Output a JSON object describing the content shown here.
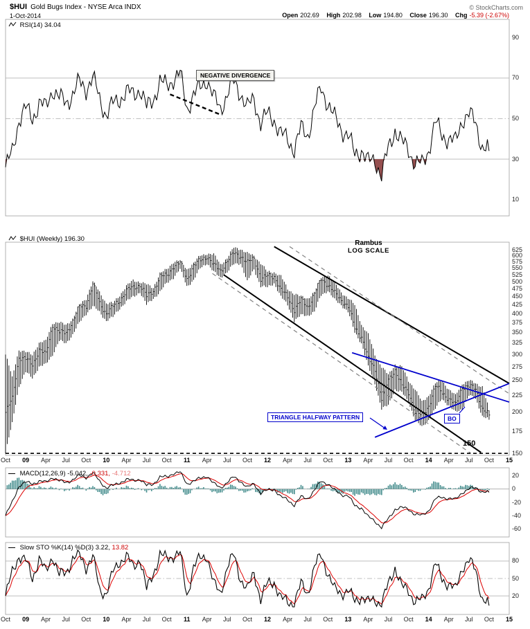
{
  "header": {
    "symbol": "$HUI",
    "name": "Gold Bugs Index - NYSE Arca INDX",
    "copyright": "© StockCharts.com",
    "date": "1-Oct-2014",
    "quote": [
      {
        "label": "Open",
        "value": "202.69"
      },
      {
        "label": "High",
        "value": "202.98"
      },
      {
        "label": "Low",
        "value": "194.80"
      },
      {
        "label": "Close",
        "value": "196.30"
      },
      {
        "label": "Chg",
        "value": "-5.39 (-2.67%)"
      }
    ]
  },
  "labels": {
    "rsi": {
      "text": "RSI(14)",
      "value": "34.04"
    },
    "price": {
      "text": "$HUI (Weekly)",
      "value": "196.30"
    },
    "macd": {
      "text": "MACD(12,26,9)",
      "v1": "-5.042,",
      "v2": "-0.331,",
      "v3": "-4.712"
    },
    "sto": {
      "text": "Slow STO %K(14) %D(3)",
      "v1": "3.22,",
      "v2": "13.82"
    }
  },
  "annotations": {
    "negative_divergence": "NEGATIVE DIVERGENCE",
    "rambus_line1": "Rambus",
    "rambus_line2": "LOG SCALE",
    "triangle": "TRIANGLE HALFWAY PATTERN",
    "bo": "BO",
    "level": "150"
  },
  "colors": {
    "negative": "#cc0000",
    "line": "#000000",
    "signal_red": "#dd0000",
    "macd_hist": "#2f7f7f",
    "oversold_fill": "#8b3d3d",
    "overbought_fill": "#999999",
    "blue": "#0000cc",
    "channel_dashed": "#808080",
    "grid": "#aaaaaa",
    "border": "#999999"
  },
  "x_axis": {
    "total_months": 75,
    "labels": [
      {
        "t": "Oct",
        "m": 0
      },
      {
        "t": "09",
        "m": 3,
        "y": 1
      },
      {
        "t": "Apr",
        "m": 6
      },
      {
        "t": "Jul",
        "m": 9
      },
      {
        "t": "Oct",
        "m": 12
      },
      {
        "t": "10",
        "m": 15,
        "y": 1
      },
      {
        "t": "Apr",
        "m": 18
      },
      {
        "t": "Jul",
        "m": 21
      },
      {
        "t": "Oct",
        "m": 24
      },
      {
        "t": "11",
        "m": 27,
        "y": 1
      },
      {
        "t": "Apr",
        "m": 30
      },
      {
        "t": "Jul",
        "m": 33
      },
      {
        "t": "Oct",
        "m": 36
      },
      {
        "t": "12",
        "m": 39,
        "y": 1
      },
      {
        "t": "Apr",
        "m": 42
      },
      {
        "t": "Jul",
        "m": 45
      },
      {
        "t": "Oct",
        "m": 48
      },
      {
        "t": "13",
        "m": 51,
        "y": 1
      },
      {
        "t": "Apr",
        "m": 54
      },
      {
        "t": "Jul",
        "m": 57
      },
      {
        "t": "Oct",
        "m": 60
      },
      {
        "t": "14",
        "m": 63,
        "y": 1
      },
      {
        "t": "Apr",
        "m": 66
      },
      {
        "t": "Jul",
        "m": 69
      },
      {
        "t": "Oct",
        "m": 72
      },
      {
        "t": "15",
        "m": 75,
        "y": 1
      }
    ]
  },
  "chart_data": [
    {
      "name": "rsi",
      "type": "line",
      "title": "RSI(14)",
      "current": 34.04,
      "ylim": [
        0,
        100
      ],
      "ticks": [
        90,
        70,
        50,
        30,
        10
      ],
      "overbought": 70,
      "oversold": 30,
      "midline": 50,
      "x_start": "Oct-2008",
      "x_step_months": 1,
      "values": [
        26,
        33,
        50,
        55,
        50,
        58,
        55,
        65,
        60,
        58,
        62,
        68,
        65,
        70,
        60,
        52,
        57,
        60,
        63,
        62,
        65,
        55,
        60,
        68,
        66,
        70,
        72,
        55,
        62,
        65,
        70,
        60,
        55,
        62,
        68,
        63,
        55,
        60,
        48,
        52,
        50,
        42,
        40,
        35,
        45,
        42,
        55,
        65,
        58,
        50,
        45,
        42,
        32,
        35,
        28,
        30,
        22,
        35,
        45,
        38,
        35,
        28,
        27,
        35,
        48,
        42,
        40,
        38,
        50,
        52,
        48,
        36,
        34.04
      ],
      "divergence_line": {
        "from": [
          24.5,
          62
        ],
        "to": [
          32,
          52
        ]
      }
    },
    {
      "name": "price",
      "type": "ohlc_bar",
      "title": "$HUI (Weekly)",
      "current": 196.3,
      "scale": "log",
      "ylim": [
        150,
        660
      ],
      "ticks": [
        625,
        600,
        575,
        550,
        525,
        500,
        475,
        450,
        425,
        400,
        375,
        350,
        325,
        300,
        275,
        250,
        225,
        200,
        175,
        150
      ],
      "support_level": 150,
      "x_start": "Oct-2008",
      "x_step_months": 1,
      "close": [
        200,
        220,
        295,
        290,
        280,
        310,
        300,
        370,
        350,
        350,
        380,
        420,
        425,
        490,
        430,
        400,
        420,
        440,
        470,
        480,
        490,
        450,
        470,
        520,
        520,
        560,
        570,
        510,
        560,
        580,
        600,
        560,
        540,
        580,
        610,
        600,
        570,
        590,
        510,
        520,
        520,
        470,
        450,
        410,
        440,
        420,
        460,
        510,
        490,
        460,
        440,
        420,
        360,
        340,
        290,
        270,
        220,
        250,
        270,
        240,
        230,
        200,
        195,
        210,
        240,
        230,
        220,
        210,
        240,
        240,
        235,
        205,
        196.3
      ],
      "high": [
        300,
        255,
        310,
        305,
        300,
        325,
        330,
        375,
        375,
        370,
        385,
        425,
        445,
        500,
        465,
        430,
        430,
        455,
        485,
        505,
        500,
        490,
        480,
        530,
        545,
        575,
        580,
        545,
        570,
        600,
        610,
        605,
        565,
        590,
        635,
        630,
        610,
        600,
        570,
        535,
        535,
        520,
        475,
        460,
        450,
        445,
        465,
        515,
        525,
        495,
        465,
        445,
        425,
        370,
        345,
        300,
        275,
        260,
        280,
        275,
        250,
        235,
        215,
        225,
        245,
        250,
        235,
        225,
        245,
        250,
        245,
        240,
        203
      ],
      "low": [
        150,
        185,
        240,
        265,
        255,
        275,
        280,
        300,
        330,
        325,
        345,
        375,
        400,
        420,
        405,
        380,
        390,
        415,
        435,
        450,
        465,
        425,
        445,
        465,
        495,
        515,
        545,
        485,
        505,
        550,
        570,
        535,
        515,
        535,
        565,
        570,
        500,
        545,
        485,
        480,
        495,
        450,
        425,
        380,
        395,
        395,
        405,
        455,
        470,
        440,
        425,
        405,
        350,
        325,
        275,
        245,
        205,
        210,
        235,
        230,
        215,
        190,
        180,
        190,
        205,
        220,
        210,
        200,
        205,
        225,
        220,
        195,
        190
      ],
      "trendlines": [
        {
          "style": "solid",
          "color": "#000000",
          "width": 2,
          "from": [
            40,
            640
          ],
          "to": [
            75,
            245
          ]
        },
        {
          "style": "dashed",
          "color": "#808080",
          "width": 1.2,
          "from": [
            42.3,
            640
          ],
          "to": [
            75,
            228
          ]
        },
        {
          "style": "solid",
          "color": "#000000",
          "width": 2,
          "from": [
            32.5,
            525
          ],
          "to": [
            70.8,
            151
          ]
        },
        {
          "style": "dashed",
          "color": "#808080",
          "width": 1.2,
          "from": [
            30.8,
            530
          ],
          "to": [
            69.3,
            150
          ]
        },
        {
          "style": "solid",
          "color": "#0000cc",
          "width": 1.8,
          "from": [
            51.6,
            304
          ],
          "to": [
            75,
            215
          ]
        },
        {
          "style": "solid",
          "color": "#0000cc",
          "width": 1.8,
          "from": [
            55,
            168
          ],
          "to": [
            75,
            245
          ]
        }
      ]
    },
    {
      "name": "macd",
      "type": "line_histogram",
      "title": "MACD(12,26,9)",
      "current": {
        "macd": -5.042,
        "signal": -0.331,
        "hist": -4.712
      },
      "ylim": [
        -70,
        30
      ],
      "ticks": [
        20,
        0,
        -20,
        -40,
        -60
      ],
      "x_start": "Oct-2008",
      "x_step_months": 1,
      "values": [
        -40,
        -20,
        5,
        10,
        8,
        12,
        10,
        18,
        12,
        10,
        14,
        20,
        18,
        24,
        12,
        2,
        5,
        10,
        14,
        13,
        15,
        5,
        8,
        18,
        18,
        24,
        25,
        8,
        12,
        16,
        20,
        8,
        2,
        10,
        18,
        12,
        2,
        8,
        -6,
        -2,
        0,
        -12,
        -16,
        -24,
        -12,
        -14,
        -2,
        12,
        8,
        -2,
        -8,
        -10,
        -25,
        -28,
        -42,
        -48,
        -58,
        -45,
        -30,
        -28,
        -30,
        -38,
        -40,
        -32,
        -15,
        -12,
        -14,
        -16,
        -5,
        0,
        2,
        -4,
        -5.042
      ]
    },
    {
      "name": "sto",
      "type": "line",
      "title": "Slow STO %K(14) %D(3)",
      "current": {
        "k": 3.22,
        "d": 13.82
      },
      "ylim": [
        0,
        100
      ],
      "ticks": [
        80,
        50,
        20
      ],
      "overbought": 80,
      "oversold": 20,
      "midline": 50,
      "x_start": "Oct-2008",
      "x_step_months": 1,
      "values": [
        20,
        60,
        90,
        80,
        50,
        85,
        60,
        90,
        55,
        60,
        85,
        90,
        70,
        88,
        30,
        25,
        60,
        80,
        88,
        70,
        85,
        30,
        60,
        90,
        85,
        90,
        92,
        20,
        70,
        85,
        90,
        40,
        25,
        70,
        90,
        50,
        30,
        60,
        15,
        40,
        45,
        15,
        10,
        8,
        40,
        25,
        70,
        90,
        60,
        30,
        25,
        30,
        10,
        20,
        8,
        15,
        5,
        40,
        70,
        35,
        30,
        10,
        12,
        35,
        75,
        50,
        40,
        30,
        70,
        80,
        65,
        15,
        3.22
      ]
    }
  ]
}
